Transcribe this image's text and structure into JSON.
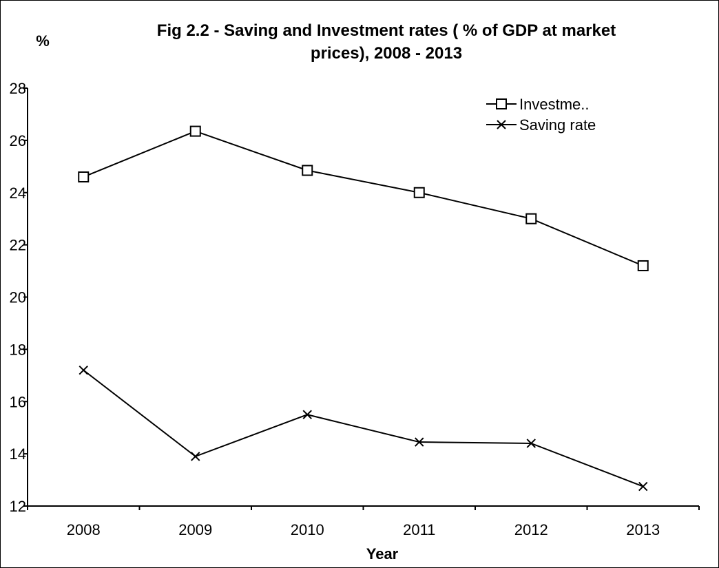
{
  "chart_data": {
    "type": "line",
    "title_line1": "Fig 2.2 - Saving and Investment rates ( % of GDP at market",
    "title_line2": "prices), 2008 - 2013",
    "ylabel": "%",
    "xlabel": "Year",
    "categories": [
      "2008",
      "2009",
      "2010",
      "2011",
      "2012",
      "2013"
    ],
    "ylim": [
      12,
      28
    ],
    "yticks": [
      12,
      14,
      16,
      18,
      20,
      22,
      24,
      26,
      28
    ],
    "grid": false,
    "legend_position": "top-right",
    "series": [
      {
        "name": "Investme..",
        "marker": "square",
        "values": [
          24.6,
          26.35,
          24.85,
          24.0,
          23.0,
          21.2
        ]
      },
      {
        "name": "Saving rate",
        "marker": "x",
        "values": [
          17.2,
          13.9,
          15.5,
          14.45,
          14.4,
          12.75
        ]
      }
    ],
    "line_color": "#000000",
    "background_color": "#ffffff"
  }
}
